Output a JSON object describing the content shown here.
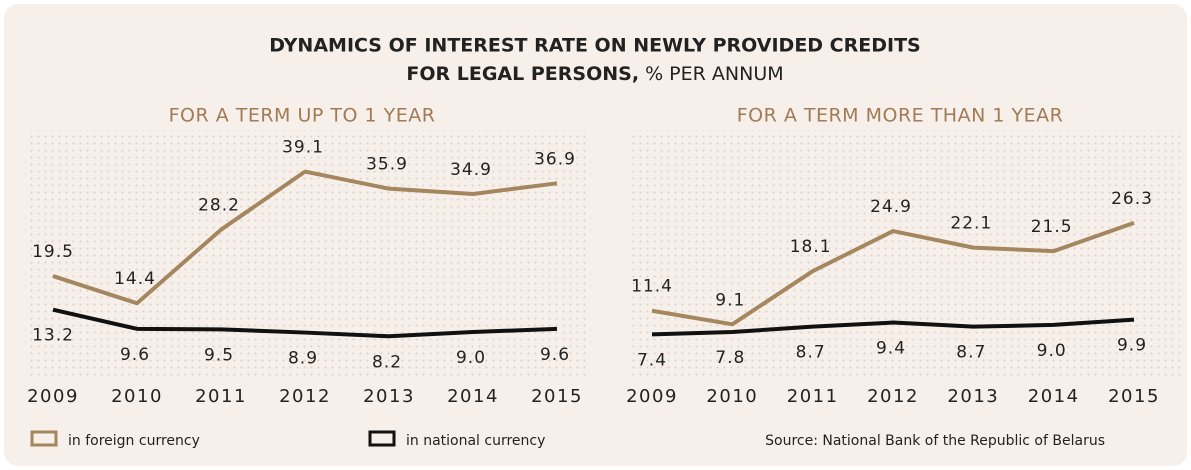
{
  "title_line1": "DYNAMICS OF INTEREST RATE ON NEWLY PROVIDED CREDITS",
  "title_line2": "FOR LEGAL PERSONS,",
  "title_unit": "% PER ANNUM",
  "source": "Source: National Bank of the Republic of Belarus",
  "chart_data": [
    {
      "type": "line",
      "title": "FOR A TERM UP TO 1 YEAR",
      "categories": [
        "2009",
        "2010",
        "2011",
        "2012",
        "2013",
        "2014",
        "2015"
      ],
      "series": [
        {
          "name": "in foreign currency",
          "color": "#a4865f",
          "values": [
            19.5,
            14.4,
            28.2,
            39.1,
            35.9,
            34.9,
            36.9
          ],
          "value_labels": [
            "19.5",
            "14.4",
            "28.2",
            "39.1",
            "35.9",
            "34.9",
            "36.9"
          ]
        },
        {
          "name": "in national currency",
          "color": "#111111",
          "values": [
            13.2,
            9.6,
            9.5,
            8.9,
            8.2,
            9.0,
            9.6
          ],
          "value_labels": [
            "13.2",
            "9.6",
            "9.5",
            "8.9",
            "8.2",
            "9.0",
            "9.6"
          ]
        }
      ]
    },
    {
      "type": "line",
      "title": "FOR A TERM MORE THAN 1 YEAR",
      "categories": [
        "2009",
        "2010",
        "2011",
        "2012",
        "2013",
        "2014",
        "2015"
      ],
      "series": [
        {
          "name": "in foreign currency",
          "color": "#a4865f",
          "values": [
            11.4,
            9.1,
            18.1,
            24.9,
            22.1,
            21.5,
            26.3
          ],
          "value_labels": [
            "11.4",
            "9.1",
            "18.1",
            "24.9",
            "22.1",
            "21.5",
            "26.3"
          ]
        },
        {
          "name": "in national currency",
          "color": "#111111",
          "values": [
            7.4,
            7.8,
            8.7,
            9.4,
            8.7,
            9.0,
            9.9
          ],
          "value_labels": [
            "7.4",
            "7.8",
            "8.7",
            "9.4",
            "8.7",
            "9.0",
            "9.9"
          ]
        }
      ]
    }
  ]
}
